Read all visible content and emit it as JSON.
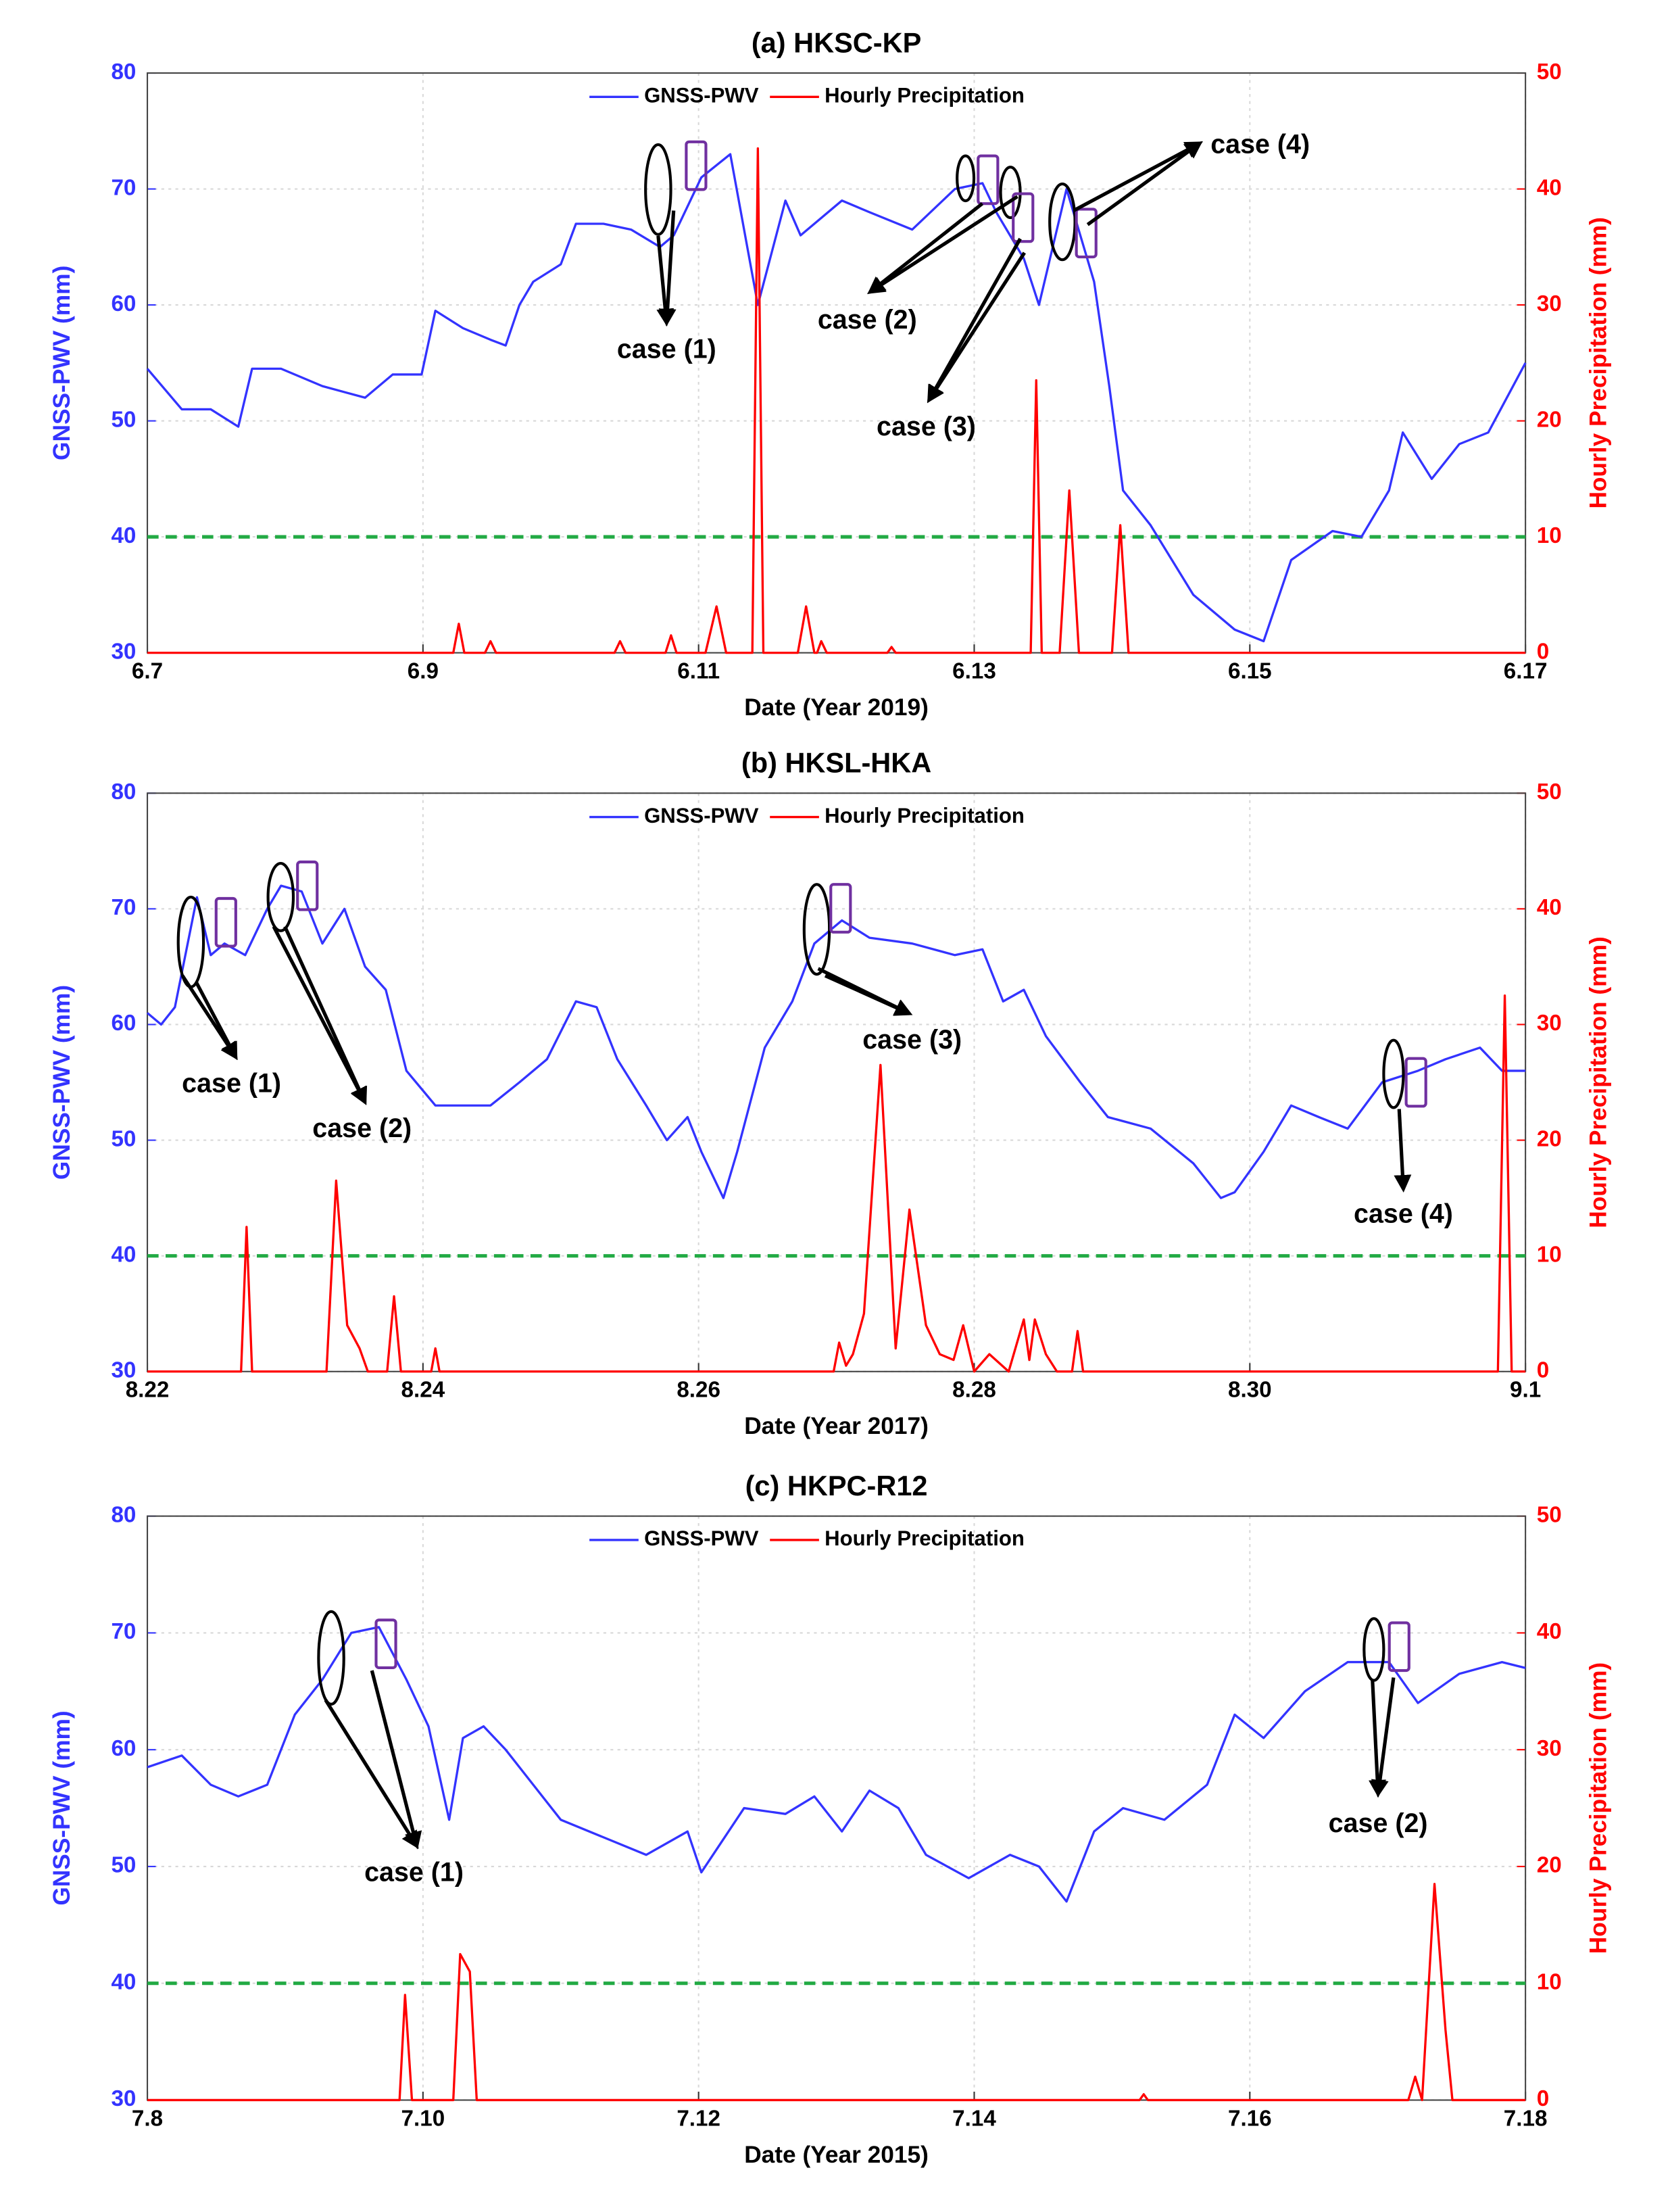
{
  "chart_data": [
    {
      "type": "line",
      "title": "(a)  HKSC-KP",
      "xlabel": "Date (Year 2019)",
      "ylabel": "GNSS-PWV (mm)",
      "y2label": "Hourly Precipitation (mm)",
      "xlim": [
        0,
        10
      ],
      "xticks": [
        {
          "value": 0,
          "label": "6.7"
        },
        {
          "value": 2,
          "label": "6.9"
        },
        {
          "value": 4,
          "label": "6.11"
        },
        {
          "value": 6,
          "label": "6.13"
        },
        {
          "value": 8,
          "label": "6.15"
        },
        {
          "value": 10,
          "label": "6.17"
        }
      ],
      "ylim": [
        30,
        80
      ],
      "yticks": [
        30,
        40,
        50,
        60,
        70,
        80
      ],
      "y2lim": [
        0,
        50
      ],
      "y2ticks": [
        0,
        10,
        20,
        30,
        40,
        50
      ],
      "grid": true,
      "legend": "top",
      "threshold": {
        "value": 40,
        "color": "#22aa44"
      },
      "series": [
        {
          "name": "GNSS-PWV",
          "color": "#3333ff",
          "x": [
            0,
            0.25,
            0.46,
            0.66,
            0.76,
            0.97,
            1.27,
            1.58,
            1.78,
            1.99,
            2.09,
            2.29,
            2.49,
            2.6,
            2.7,
            2.8,
            3.0,
            3.11,
            3.31,
            3.51,
            3.72,
            3.82,
            4.02,
            4.23,
            4.43,
            4.63,
            4.74,
            5.04,
            5.24,
            5.55,
            5.86,
            6.06,
            6.16,
            6.36,
            6.47,
            6.67,
            6.87,
            6.98,
            7.08,
            7.28,
            7.59,
            7.89,
            8.1,
            8.3,
            8.6,
            8.81,
            9.01,
            9.11,
            9.32,
            9.52,
            9.73,
            10
          ],
          "values": [
            54.5,
            51,
            51,
            49.5,
            54.5,
            54.5,
            53,
            52,
            54,
            54,
            59.5,
            58,
            57,
            56.5,
            60,
            62,
            63.5,
            67,
            67,
            66.5,
            65,
            66,
            71,
            73,
            60,
            69,
            66,
            69,
            68,
            66.5,
            70,
            70.5,
            68,
            64,
            60,
            70,
            62,
            53,
            44,
            41,
            35,
            32,
            31,
            38,
            40.5,
            40,
            44,
            49,
            45,
            48,
            49,
            55
          ]
        },
        {
          "name": "Hourly Precipitation",
          "color": "#ff0000",
          "axis": "y2",
          "x": [
            0,
            2.22,
            2.26,
            2.3,
            2.45,
            2.49,
            2.53,
            3.39,
            3.43,
            3.47,
            3.76,
            3.8,
            3.84,
            4.05,
            4.13,
            4.2,
            4.39,
            4.43,
            4.47,
            4.72,
            4.78,
            4.84,
            4.86,
            4.89,
            4.93,
            5.37,
            5.4,
            5.43,
            6.41,
            6.45,
            6.49,
            6.62,
            6.69,
            6.76,
            7.0,
            7.06,
            7.12,
            10
          ],
          "values": [
            0,
            0,
            2.5,
            0,
            0,
            1,
            0,
            0,
            1,
            0,
            0,
            1.5,
            0,
            0,
            4,
            0,
            0,
            43.5,
            0,
            0,
            4,
            0,
            0,
            1,
            0,
            0,
            0.5,
            0,
            0,
            23.5,
            0,
            0,
            14,
            0,
            0,
            11,
            0,
            0
          ]
        }
      ],
      "annotations": [
        "case (1)",
        "case (2)",
        "case (3)",
        "case (4)"
      ]
    },
    {
      "type": "line",
      "title": "(b)  HKSL-HKA",
      "xlabel": "Date (Year 2017)",
      "ylabel": "GNSS-PWV (mm)",
      "y2label": "Hourly Precipitation (mm)",
      "xlim": [
        0,
        10
      ],
      "xticks": [
        {
          "value": 0,
          "label": "8.22"
        },
        {
          "value": 2,
          "label": "8.24"
        },
        {
          "value": 4,
          "label": "8.26"
        },
        {
          "value": 6,
          "label": "8.28"
        },
        {
          "value": 8,
          "label": "8.30"
        },
        {
          "value": 10,
          "label": "9.1"
        }
      ],
      "ylim": [
        30,
        80
      ],
      "yticks": [
        30,
        40,
        50,
        60,
        70,
        80
      ],
      "y2lim": [
        0,
        50
      ],
      "y2ticks": [
        0,
        10,
        20,
        30,
        40,
        50
      ],
      "grid": true,
      "legend": "top",
      "threshold": {
        "value": 40,
        "color": "#22aa44"
      },
      "series": [
        {
          "name": "GNSS-PWV",
          "color": "#3333ff",
          "x": [
            0,
            0.1,
            0.2,
            0.36,
            0.46,
            0.56,
            0.71,
            0.87,
            0.97,
            1.12,
            1.27,
            1.43,
            1.58,
            1.73,
            1.88,
            2.09,
            2.29,
            2.49,
            2.7,
            2.9,
            3.11,
            3.26,
            3.41,
            3.62,
            3.77,
            3.92,
            4.02,
            4.18,
            4.28,
            4.48,
            4.68,
            4.84,
            5.04,
            5.24,
            5.55,
            5.86,
            6.06,
            6.21,
            6.36,
            6.52,
            6.77,
            6.97,
            7.28,
            7.59,
            7.79,
            7.89,
            8.1,
            8.3,
            8.5,
            8.71,
            8.96,
            9.22,
            9.42,
            9.67,
            9.83,
            10
          ],
          "values": [
            61,
            60,
            61.5,
            71,
            66,
            67,
            66,
            70,
            72,
            71.5,
            67,
            70,
            65,
            63,
            56,
            53,
            53,
            53,
            55,
            57,
            62,
            61.5,
            57,
            53,
            50,
            52,
            49,
            45,
            49,
            58,
            62,
            67,
            69,
            67.5,
            67,
            66,
            66.5,
            62,
            63,
            59,
            55,
            52,
            51,
            48,
            45,
            45.5,
            49,
            53,
            52,
            51,
            55,
            56,
            57,
            58,
            56,
            56
          ]
        },
        {
          "name": "Hourly Precipitation",
          "color": "#ff0000",
          "axis": "y2",
          "x": [
            0,
            0.68,
            0.72,
            0.76,
            1.3,
            1.37,
            1.45,
            1.54,
            1.6,
            1.74,
            1.79,
            1.84,
            2.06,
            2.09,
            2.12,
            4.98,
            5.02,
            5.07,
            5.12,
            5.2,
            5.32,
            5.43,
            5.53,
            5.65,
            5.75,
            5.85,
            5.92,
            6.0,
            6.11,
            6.25,
            6.36,
            6.4,
            6.44,
            6.52,
            6.6,
            6.71,
            6.75,
            6.79,
            9.8,
            9.85,
            9.9,
            10
          ],
          "values": [
            0,
            0,
            12.5,
            0,
            0,
            16.5,
            4,
            2,
            0,
            0,
            6.5,
            0,
            0,
            2,
            0,
            0,
            2.5,
            0.5,
            1.5,
            5,
            26.5,
            2,
            14,
            4,
            1.5,
            1,
            4,
            0,
            1.5,
            0,
            4.5,
            1,
            4.5,
            1.5,
            0,
            0,
            3.5,
            0,
            0,
            32.5,
            0,
            0
          ]
        }
      ],
      "annotations": [
        "case (1)",
        "case (2)",
        "case (3)",
        "case (4)"
      ]
    },
    {
      "type": "line",
      "title": "(c)  HKPC-R12",
      "xlabel": "Date (Year 2015)",
      "ylabel": "GNSS-PWV (mm)",
      "y2label": "Hourly Precipitation (mm)",
      "xlim": [
        0,
        10
      ],
      "xticks": [
        {
          "value": 0,
          "label": "7.8"
        },
        {
          "value": 2,
          "label": "7.10"
        },
        {
          "value": 4,
          "label": "7.12"
        },
        {
          "value": 6,
          "label": "7.14"
        },
        {
          "value": 8,
          "label": "7.16"
        },
        {
          "value": 10,
          "label": "7.18"
        }
      ],
      "ylim": [
        30,
        80
      ],
      "yticks": [
        30,
        40,
        50,
        60,
        70,
        80
      ],
      "y2lim": [
        0,
        50
      ],
      "y2ticks": [
        0,
        10,
        20,
        30,
        40,
        50
      ],
      "grid": true,
      "legend": "top",
      "threshold": {
        "value": 40,
        "color": "#22aa44"
      },
      "series": [
        {
          "name": "GNSS-PWV",
          "color": "#3333ff",
          "x": [
            0,
            0.25,
            0.46,
            0.66,
            0.87,
            1.07,
            1.27,
            1.48,
            1.68,
            1.88,
            2.04,
            2.19,
            2.29,
            2.44,
            2.6,
            2.8,
            3.0,
            3.31,
            3.62,
            3.92,
            4.02,
            4.33,
            4.63,
            4.84,
            5.04,
            5.24,
            5.45,
            5.65,
            5.96,
            6.26,
            6.47,
            6.67,
            6.87,
            7.08,
            7.38,
            7.69,
            7.89,
            8.1,
            8.4,
            8.71,
            9.01,
            9.22,
            9.52,
            9.83,
            10
          ],
          "values": [
            58.5,
            59.5,
            57,
            56,
            57,
            63,
            66,
            70,
            70.5,
            66,
            62,
            54,
            61,
            62,
            60,
            57,
            54,
            52.5,
            51,
            53,
            49.5,
            55,
            54.5,
            56,
            53,
            56.5,
            55,
            51,
            49,
            51,
            50,
            47,
            53,
            55,
            54,
            57,
            63,
            61,
            65,
            67.5,
            67.5,
            64,
            66.5,
            67.5,
            67
          ]
        },
        {
          "name": "Hourly Precipitation",
          "color": "#ff0000",
          "axis": "y2",
          "x": [
            0,
            1.83,
            1.87,
            1.92,
            2.22,
            2.27,
            2.34,
            2.39,
            7.2,
            7.23,
            7.26,
            9.15,
            9.2,
            9.25,
            9.34,
            9.42,
            9.47,
            10
          ],
          "values": [
            0,
            0,
            9,
            0,
            0,
            12.5,
            11,
            0,
            0,
            0.5,
            0,
            0,
            2,
            0,
            18.5,
            6,
            0,
            0
          ]
        }
      ],
      "annotations": [
        "case (1)",
        "case (2)"
      ]
    }
  ]
}
